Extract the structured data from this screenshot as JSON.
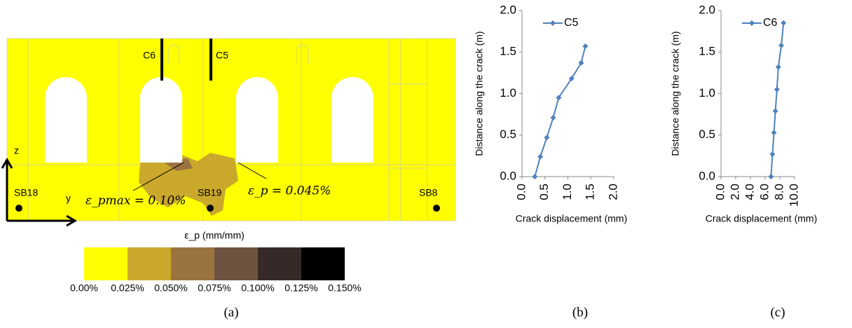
{
  "figure_a": {
    "labels": {
      "c6": "C6",
      "c5": "C5",
      "sb18": "SB18",
      "sb19": "SB19",
      "sb8": "SB8",
      "axis_y": "y",
      "axis_z": "z",
      "eps_max": "ε_pmax = 0.10%",
      "eps": "ε_p = 0.045%",
      "scale_title": "ε_p (mm/mm)"
    },
    "scale_colors": [
      "#ffff00",
      "#c9a82c",
      "#9b7340",
      "#6e5440",
      "#352a28",
      "#000000"
    ],
    "scale_labels": [
      "0.00%",
      "0.025%",
      "0.050%",
      "0.075%",
      "0.100%",
      "0.125%",
      "0.150%"
    ],
    "caption": "(a)"
  },
  "chart_data": [
    {
      "type": "line",
      "caption": "(b)",
      "xlabel": "Crack displacement (mm)",
      "ylabel": "Distance along the crack (m)",
      "x": [
        0.28,
        0.4,
        0.54,
        0.68,
        0.8,
        1.08,
        1.29,
        1.38
      ],
      "series": [
        {
          "name": "C5",
          "color": "#4f81bd",
          "values": [
            0,
            0.24,
            0.47,
            0.71,
            0.95,
            1.18,
            1.37,
            1.57
          ]
        }
      ],
      "xlim": [
        0,
        2
      ],
      "xticks": [
        {
          "value": 0,
          "label": "0.0"
        },
        {
          "value": 0.5,
          "label": "0.5"
        },
        {
          "value": 1,
          "label": "1.0"
        },
        {
          "value": 1.5,
          "label": "1.5"
        },
        {
          "value": 2,
          "label": "2.0"
        }
      ],
      "ylim": [
        0,
        2
      ],
      "yticks": [
        {
          "value": 0,
          "label": "0.0"
        },
        {
          "value": 0.5,
          "label": "0.5"
        },
        {
          "value": 1,
          "label": "1.0"
        },
        {
          "value": 1.5,
          "label": "1.5"
        },
        {
          "value": 2,
          "label": "2.0"
        }
      ],
      "legend": "upper left"
    },
    {
      "type": "line",
      "caption": "(c)",
      "xlabel": "Crack displacement (mm)",
      "ylabel": "Distance along the crack (m)",
      "x": [
        6.8,
        7.0,
        7.2,
        7.4,
        7.6,
        7.8,
        8.2,
        8.5
      ],
      "series": [
        {
          "name": "C6",
          "color": "#4f81bd",
          "values": [
            0,
            0.27,
            0.53,
            0.79,
            1.05,
            1.32,
            1.58,
            1.85
          ]
        }
      ],
      "xlim": [
        0,
        10
      ],
      "xticks": [
        {
          "value": 0,
          "label": "0.0"
        },
        {
          "value": 2,
          "label": "2.0"
        },
        {
          "value": 4,
          "label": "4.0"
        },
        {
          "value": 6,
          "label": "6.0"
        },
        {
          "value": 8,
          "label": "8.0"
        },
        {
          "value": 10,
          "label": "10.0"
        }
      ],
      "ylim": [
        0,
        2
      ],
      "yticks": [
        {
          "value": 0,
          "label": "0.0"
        },
        {
          "value": 0.5,
          "label": "0.5"
        },
        {
          "value": 1,
          "label": "1.0"
        },
        {
          "value": 1.5,
          "label": "1.5"
        },
        {
          "value": 2,
          "label": "2.0"
        }
      ],
      "legend": "upper left"
    }
  ]
}
